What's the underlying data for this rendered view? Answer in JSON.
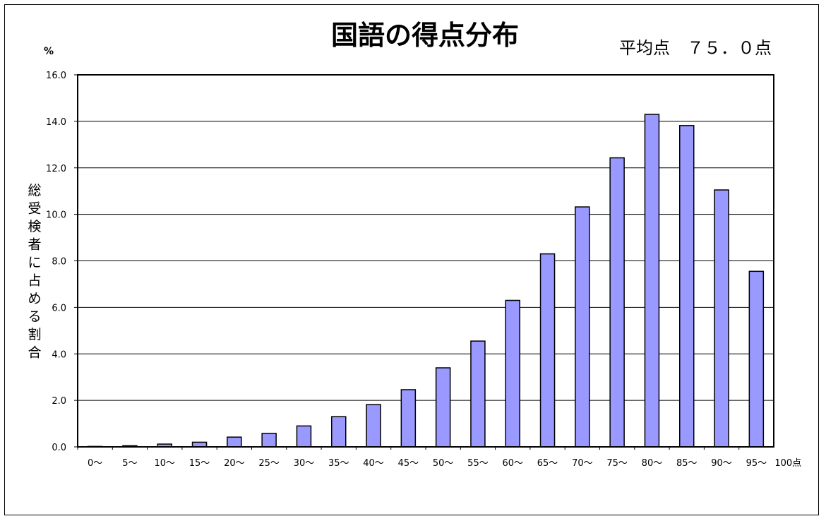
{
  "chart_data": {
    "type": "bar",
    "title": "国語の得点分布",
    "average_label": "平均点　７５．０点",
    "ylabel": "総受検者に占める割合",
    "yunit": "%",
    "xunit": "100点",
    "ylim": [
      0,
      16
    ],
    "yticks": [
      "0.0",
      "2.0",
      "4.0",
      "6.0",
      "8.0",
      "10.0",
      "12.0",
      "14.0",
      "16.0"
    ],
    "grid": true,
    "categories": [
      "0～",
      "5～",
      "10～",
      "15～",
      "20～",
      "25～",
      "30～",
      "35～",
      "40～",
      "45～",
      "50～",
      "55～",
      "60～",
      "65～",
      "70～",
      "75～",
      "80～",
      "85～",
      "90～",
      "95～"
    ],
    "values": [
      0.02,
      0.05,
      0.12,
      0.2,
      0.42,
      0.58,
      0.9,
      1.3,
      1.82,
      2.46,
      3.4,
      4.55,
      6.3,
      8.3,
      10.32,
      12.43,
      14.3,
      13.82,
      11.05,
      7.55
    ],
    "bar_color": "#9999ff"
  }
}
